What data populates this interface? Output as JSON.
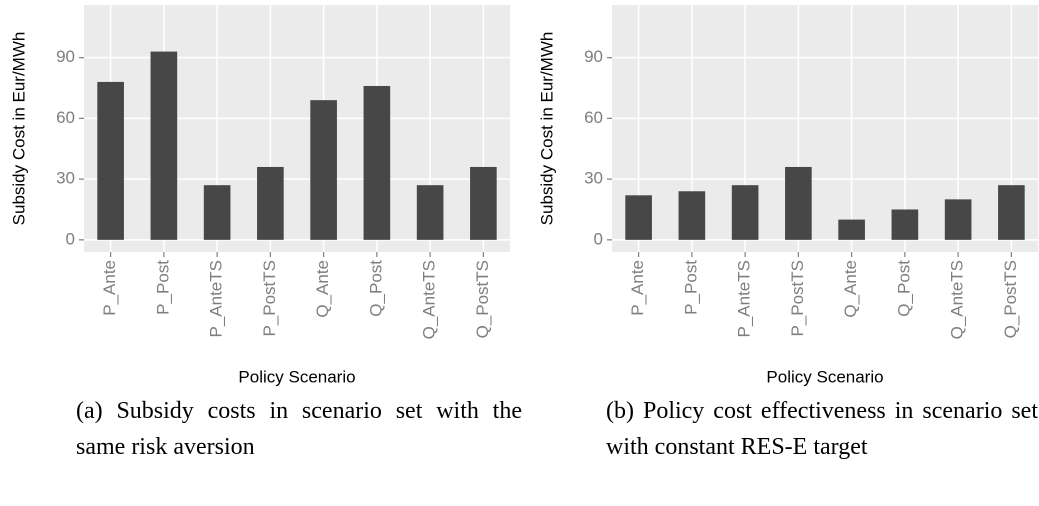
{
  "chart_data": [
    {
      "type": "bar",
      "caption": "(a) Subsidy costs in scenario set with the same risk aversion",
      "ylabel": "Subsidy Cost in Eur/MWh",
      "xlabel": "Policy Scenario",
      "categories": [
        "P_Ante",
        "P_Post",
        "P_AnteTS",
        "P_PostTS",
        "Q_Ante",
        "Q_Post",
        "Q_AnteTS",
        "Q_PostTS"
      ],
      "values": [
        78,
        93,
        27,
        36,
        69,
        76,
        27,
        36
      ],
      "color": "#474747",
      "ylim": [
        -6,
        116
      ],
      "yticks": [
        0,
        30,
        60,
        90
      ],
      "grid": true
    },
    {
      "type": "bar",
      "caption": "(b) Policy cost effectiveness in scenario set with constant RES-E target",
      "ylabel": "Subsidy Cost in Eur/MWh",
      "xlabel": "Policy Scenario",
      "categories": [
        "P_Ante",
        "P_Post",
        "P_AnteTS",
        "P_PostTS",
        "Q_Ante",
        "Q_Post",
        "Q_AnteTS",
        "Q_PostTS"
      ],
      "values": [
        22,
        24,
        27,
        36,
        10,
        15,
        20,
        27
      ],
      "color": "#474747",
      "ylim": [
        -6,
        116
      ],
      "yticks": [
        0,
        30,
        60,
        90
      ],
      "grid": true
    }
  ]
}
